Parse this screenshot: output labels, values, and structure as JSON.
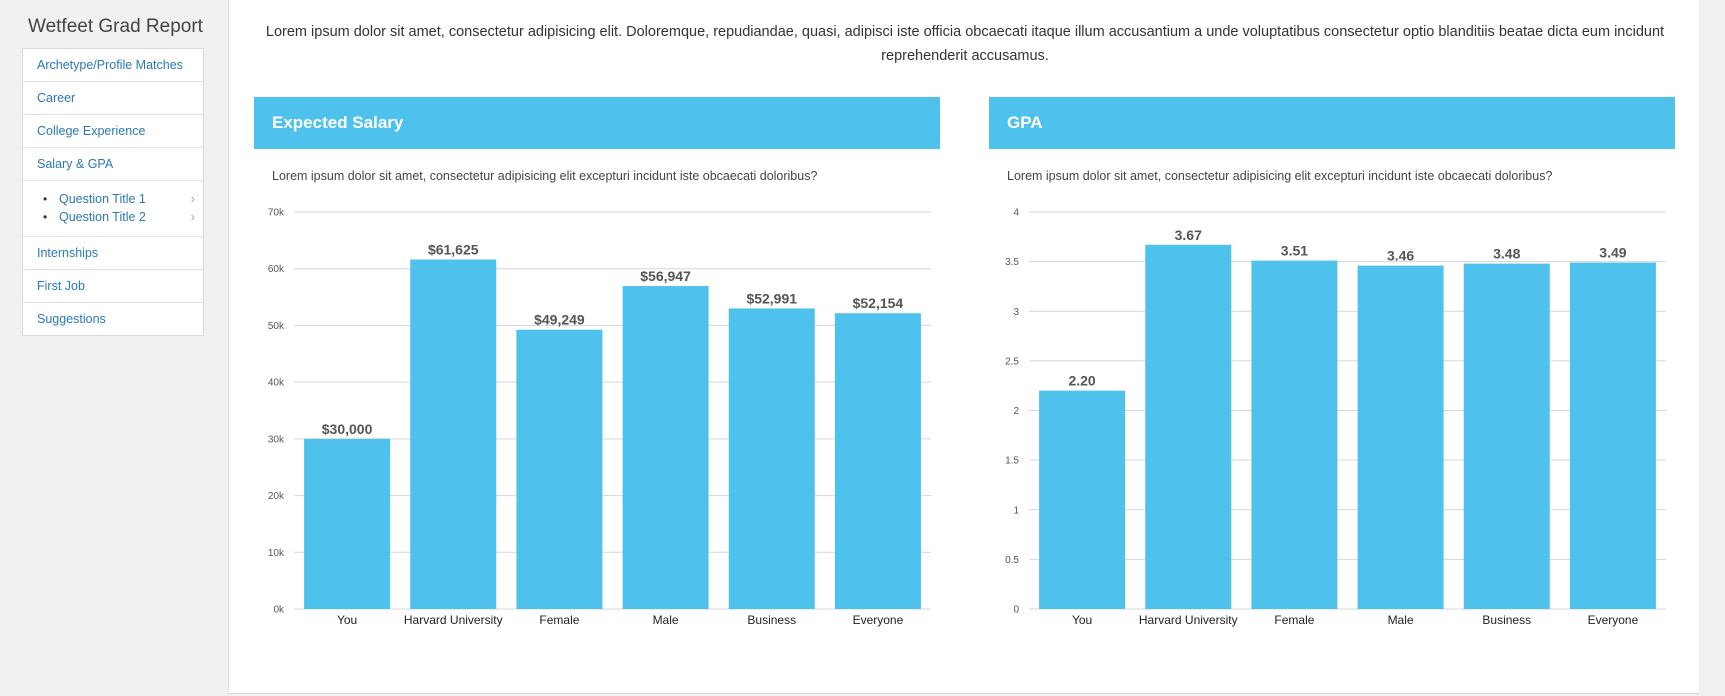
{
  "app": {
    "title": "Wetfeet Grad Report"
  },
  "sidebar": {
    "items_top": [
      {
        "label": "Archetype/Profile Matches"
      },
      {
        "label": "Career"
      },
      {
        "label": "College Experience"
      },
      {
        "label": "Salary & GPA"
      }
    ],
    "sub_items": [
      {
        "label": "Question Title 1"
      },
      {
        "label": "Question Title 2"
      }
    ],
    "items_bottom": [
      {
        "label": "Internships"
      },
      {
        "label": "First Job"
      },
      {
        "label": "Suggestions"
      }
    ]
  },
  "main": {
    "intro": "Lorem ipsum dolor sit amet, consectetur adipisicing elit. Doloremque, repudiandae, quasi, adipisci iste officia obcaecati itaque illum accusantium a unde voluptatibus consectetur optio blanditiis beatae dicta eum incidunt reprehenderit accusamus."
  },
  "colors": {
    "bar": "#4fc1ed",
    "header": "#4fc1ed",
    "link": "#2a79b8",
    "grid": "#d6d6d6"
  },
  "chart_data": [
    {
      "type": "bar",
      "title": "Expected Salary",
      "description": "Lorem ipsum dolor sit amet, consectetur adipisicing elit excepturi incidunt iste obcaecati doloribus?",
      "categories": [
        "You",
        "Harvard University",
        "Female",
        "Male",
        "Business",
        "Everyone"
      ],
      "values": [
        30000,
        61625,
        49249,
        56947,
        52991,
        52154
      ],
      "value_labels": [
        "$30,000",
        "$61,625",
        "$49,249",
        "$56,947",
        "$52,991",
        "$52,154"
      ],
      "ylim": [
        0,
        70000
      ],
      "yticks": [
        0,
        10000,
        20000,
        30000,
        40000,
        50000,
        60000,
        70000
      ],
      "ytick_labels": [
        "0k",
        "10k",
        "20k",
        "30k",
        "40k",
        "50k",
        "60k",
        "70k"
      ],
      "grid": true
    },
    {
      "type": "bar",
      "title": "GPA",
      "description": "Lorem ipsum dolor sit amet, consectetur adipisicing elit excepturi incidunt iste obcaecati doloribus?",
      "categories": [
        "You",
        "Harvard University",
        "Female",
        "Male",
        "Business",
        "Everyone"
      ],
      "values": [
        2.2,
        3.67,
        3.51,
        3.46,
        3.48,
        3.49
      ],
      "value_labels": [
        "2.20",
        "3.67",
        "3.51",
        "3.46",
        "3.48",
        "3.49"
      ],
      "ylim": [
        0,
        4
      ],
      "yticks": [
        0,
        0.5,
        1,
        1.5,
        2,
        2.5,
        3,
        3.5,
        4
      ],
      "ytick_labels": [
        "0",
        "0.5",
        "1",
        "1.5",
        "2",
        "2.5",
        "3",
        "3.5",
        "4"
      ],
      "grid": true
    }
  ]
}
